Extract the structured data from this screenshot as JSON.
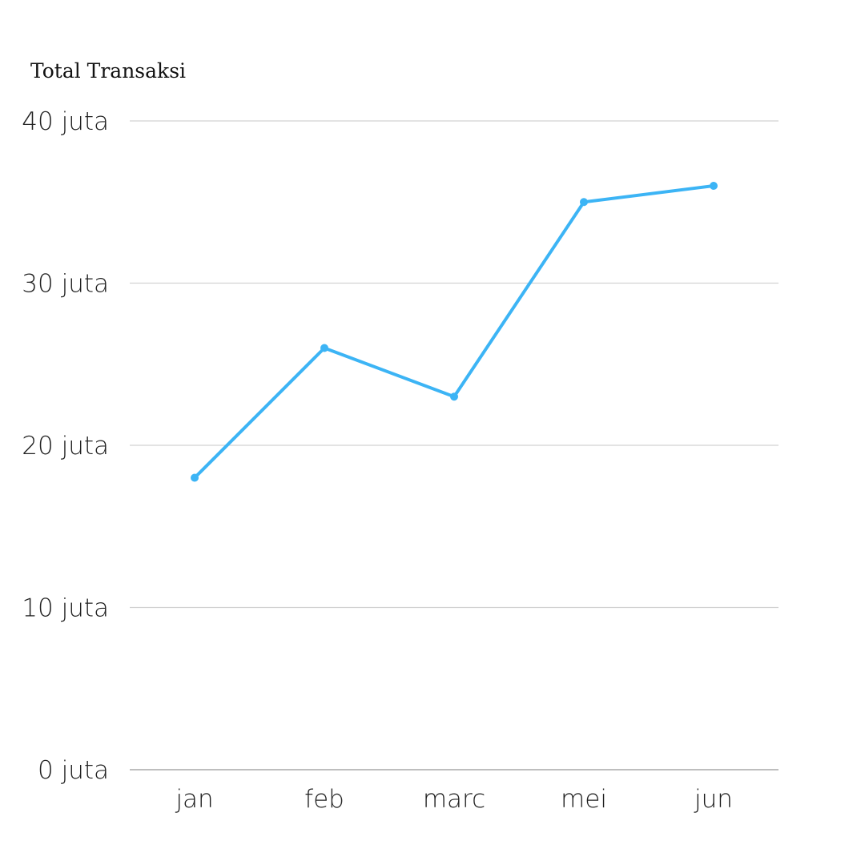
{
  "chart_data": {
    "type": "line",
    "title": "Total Transaksi",
    "xlabel": "",
    "ylabel": "",
    "categories": [
      "jan",
      "feb",
      "marc",
      "mei",
      "jun"
    ],
    "series": [
      {
        "values": [
          18,
          26,
          23,
          35,
          36
        ],
        "color": "#3cb4f5"
      }
    ],
    "ylim": [
      0,
      40
    ],
    "y_ticks": [
      {
        "value": 0,
        "label": "0 juta"
      },
      {
        "value": 10,
        "label": "10 juta"
      },
      {
        "value": 20,
        "label": "20 juta"
      },
      {
        "value": 30,
        "label": "30 juta"
      },
      {
        "value": 40,
        "label": "40 juta"
      }
    ],
    "grid": true,
    "legend": "none",
    "colors": {
      "line": "#3cb4f5",
      "grid": "#d2d2d2",
      "baseline": "#a8a8a8",
      "text": "#222222"
    }
  }
}
